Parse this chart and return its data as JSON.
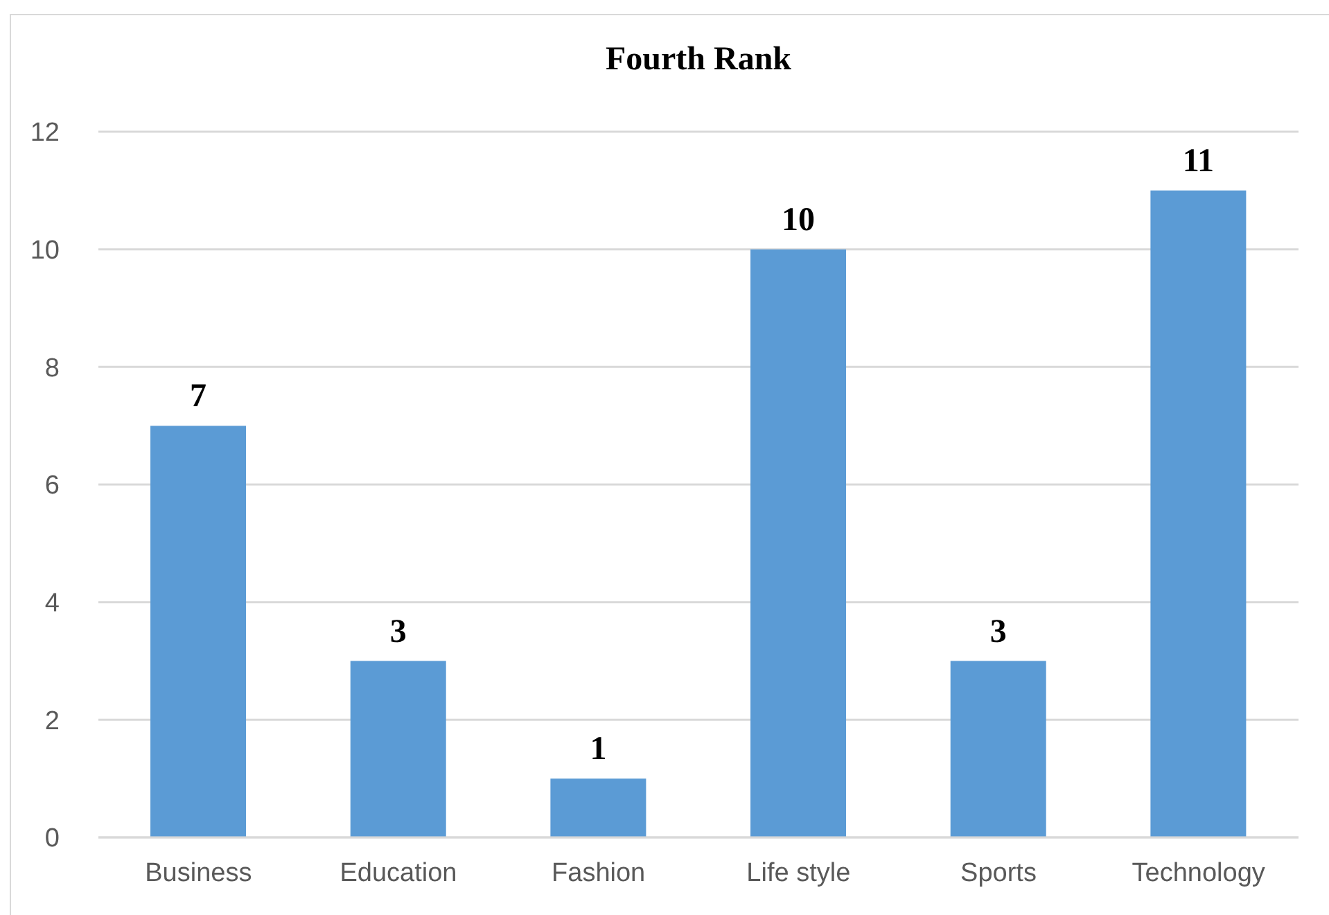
{
  "chart_data": {
    "type": "bar",
    "title": "Fourth Rank",
    "categories": [
      "Business",
      "Education",
      "Fashion",
      "Life style",
      "Sports",
      "Technology"
    ],
    "values": [
      7,
      3,
      1,
      10,
      3,
      11
    ],
    "color": "#5b9bd5",
    "ylim": [
      0,
      12
    ],
    "yticks": [
      0,
      2,
      4,
      6,
      8,
      10,
      12
    ],
    "grid": "y",
    "data_labels": true
  }
}
